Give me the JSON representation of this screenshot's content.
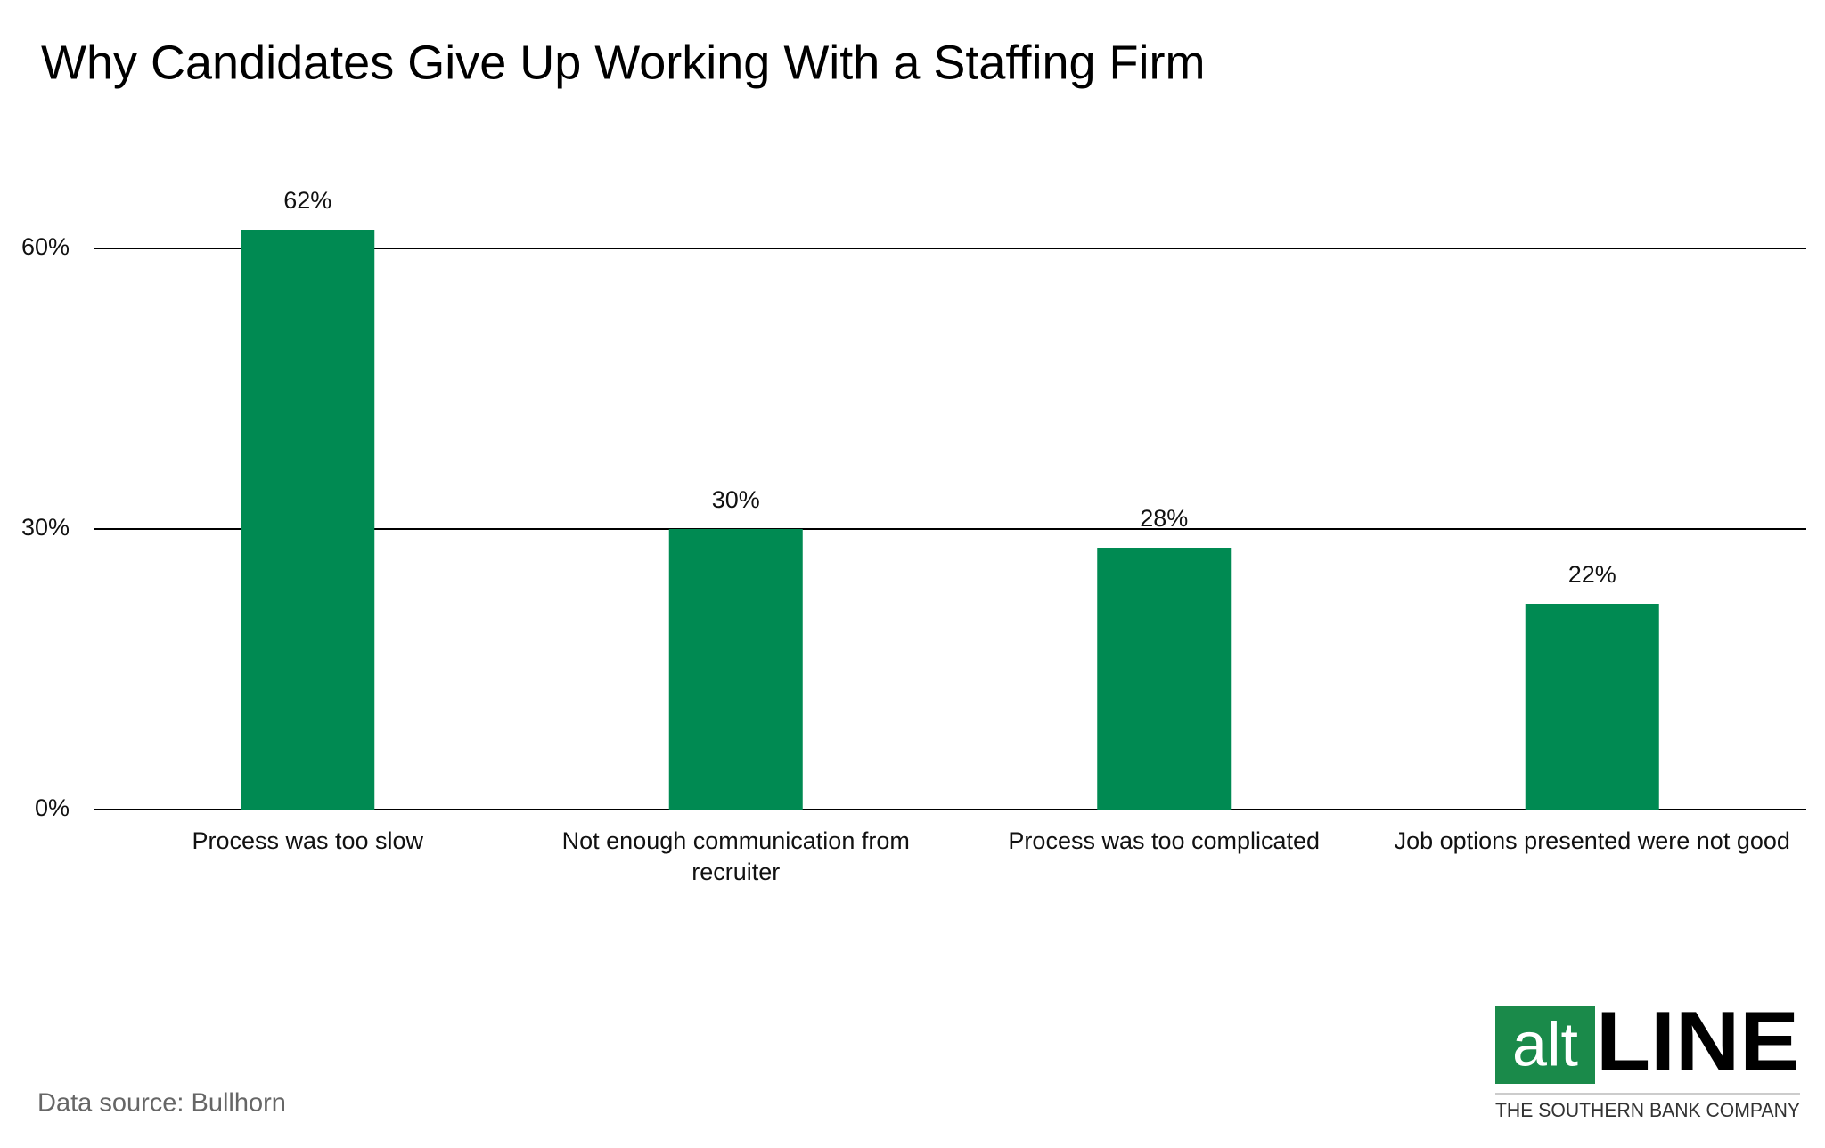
{
  "chart_data": {
    "type": "bar",
    "title": "Why Candidates Give Up Working With a Staffing Firm",
    "categories": [
      "Process was too slow",
      "Not enough communication from recruiter",
      "Process was too complicated",
      "Job options presented were not good"
    ],
    "values": [
      62,
      30,
      28,
      22
    ],
    "value_labels": [
      "62%",
      "30%",
      "28%",
      "22%"
    ],
    "color": "#008a52",
    "ylim": [
      0,
      70
    ],
    "yticks": [
      {
        "value": 0,
        "label": "0%"
      },
      {
        "value": 30,
        "label": "30%"
      },
      {
        "value": 60,
        "label": "60%"
      }
    ],
    "grid": true,
    "source": "Data source: Bullhorn"
  },
  "logo": {
    "left": "alt",
    "right": "LINE",
    "tagline": "THE SOUTHERN BANK COMPANY"
  }
}
